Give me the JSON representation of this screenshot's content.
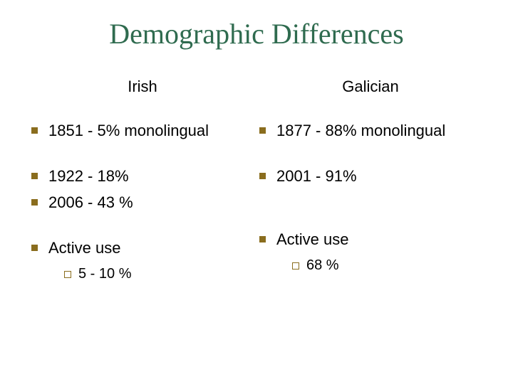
{
  "title": "Demographic Differences",
  "title_color": "#2f6b4f",
  "text_color": "#000000",
  "bullet_lvl1_color": "#8a6d1e",
  "bullet_lvl2_color": "#8a6d1e",
  "background_color": "#ffffff",
  "title_fontsize": 40,
  "body_fontsize": 22,
  "sub_fontsize": 20,
  "columns": {
    "left": {
      "heading": "Irish",
      "items": [
        {
          "text": "1851 - 5% monolingual"
        },
        {
          "text": "1922 - 18%",
          "gap_before": true
        },
        {
          "text": "2006 - 43 %"
        },
        {
          "text": "Active use",
          "gap_before": true,
          "sub": [
            {
              "text": "5 - 10 %"
            }
          ]
        }
      ]
    },
    "right": {
      "heading": "Galician",
      "items": [
        {
          "text": "1877 - 88% monolingual"
        },
        {
          "text": "2001 - 91%",
          "gap_before": true
        },
        {
          "text": "Active use",
          "gap_before": true,
          "extra_gap": true,
          "sub": [
            {
              "text": "68 %"
            }
          ]
        }
      ]
    }
  }
}
